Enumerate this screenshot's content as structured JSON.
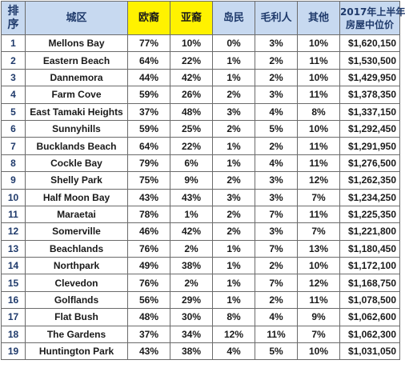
{
  "header": {
    "rank": [
      "排",
      "序"
    ],
    "suburb": "城区",
    "european": "欧裔",
    "asian": "亚裔",
    "pacific": "岛民",
    "maori": "毛利人",
    "other": "其他",
    "price": [
      "2017年上半年",
      "房屋中位价"
    ]
  },
  "rows": [
    {
      "rank": "1",
      "suburb": "Mellons Bay",
      "european": "77%",
      "asian": "10%",
      "pacific": "0%",
      "maori": "3%",
      "other": "10%",
      "price": "$1,620,150"
    },
    {
      "rank": "2",
      "suburb": "Eastern Beach",
      "european": "64%",
      "asian": "22%",
      "pacific": "1%",
      "maori": "2%",
      "other": "11%",
      "price": "$1,530,500"
    },
    {
      "rank": "3",
      "suburb": "Dannemora",
      "european": "44%",
      "asian": "42%",
      "pacific": "1%",
      "maori": "2%",
      "other": "10%",
      "price": "$1,429,950"
    },
    {
      "rank": "4",
      "suburb": "Farm Cove",
      "european": "59%",
      "asian": "26%",
      "pacific": "2%",
      "maori": "3%",
      "other": "11%",
      "price": "$1,378,350"
    },
    {
      "rank": "5",
      "suburb": "East Tamaki Heights",
      "european": "37%",
      "asian": "48%",
      "pacific": "3%",
      "maori": "4%",
      "other": "8%",
      "price": "$1,337,150"
    },
    {
      "rank": "6",
      "suburb": "Sunnyhills",
      "european": "59%",
      "asian": "25%",
      "pacific": "2%",
      "maori": "5%",
      "other": "10%",
      "price": "$1,292,450"
    },
    {
      "rank": "7",
      "suburb": "Bucklands Beach",
      "european": "64%",
      "asian": "22%",
      "pacific": "1%",
      "maori": "2%",
      "other": "11%",
      "price": "$1,291,950"
    },
    {
      "rank": "8",
      "suburb": "Cockle Bay",
      "european": "79%",
      "asian": "6%",
      "pacific": "1%",
      "maori": "4%",
      "other": "11%",
      "price": "$1,276,500"
    },
    {
      "rank": "9",
      "suburb": "Shelly Park",
      "european": "75%",
      "asian": "9%",
      "pacific": "2%",
      "maori": "3%",
      "other": "12%",
      "price": "$1,262,350"
    },
    {
      "rank": "10",
      "suburb": "Half Moon Bay",
      "european": "43%",
      "asian": "43%",
      "pacific": "3%",
      "maori": "3%",
      "other": "7%",
      "price": "$1,234,250"
    },
    {
      "rank": "11",
      "suburb": "Maraetai",
      "european": "78%",
      "asian": "1%",
      "pacific": "2%",
      "maori": "7%",
      "other": "11%",
      "price": "$1,225,350"
    },
    {
      "rank": "12",
      "suburb": "Somerville",
      "european": "46%",
      "asian": "42%",
      "pacific": "2%",
      "maori": "3%",
      "other": "7%",
      "price": "$1,221,800"
    },
    {
      "rank": "13",
      "suburb": "Beachlands",
      "european": "76%",
      "asian": "2%",
      "pacific": "1%",
      "maori": "7%",
      "other": "13%",
      "price": "$1,180,450"
    },
    {
      "rank": "14",
      "suburb": "Northpark",
      "european": "49%",
      "asian": "38%",
      "pacific": "1%",
      "maori": "2%",
      "other": "10%",
      "price": "$1,172,100"
    },
    {
      "rank": "15",
      "suburb": "Clevedon",
      "european": "76%",
      "asian": "2%",
      "pacific": "1%",
      "maori": "7%",
      "other": "12%",
      "price": "$1,168,750"
    },
    {
      "rank": "16",
      "suburb": "Golflands",
      "european": "56%",
      "asian": "29%",
      "pacific": "1%",
      "maori": "2%",
      "other": "11%",
      "price": "$1,078,500"
    },
    {
      "rank": "17",
      "suburb": "Flat Bush",
      "european": "48%",
      "asian": "30%",
      "pacific": "8%",
      "maori": "4%",
      "other": "9%",
      "price": "$1,062,600"
    },
    {
      "rank": "18",
      "suburb": "The Gardens",
      "european": "37%",
      "asian": "34%",
      "pacific": "12%",
      "maori": "11%",
      "other": "7%",
      "price": "$1,062,300"
    },
    {
      "rank": "19",
      "suburb": "Huntington Park",
      "european": "43%",
      "asian": "38%",
      "pacific": "4%",
      "maori": "5%",
      "other": "10%",
      "price": "$1,031,050"
    }
  ]
}
